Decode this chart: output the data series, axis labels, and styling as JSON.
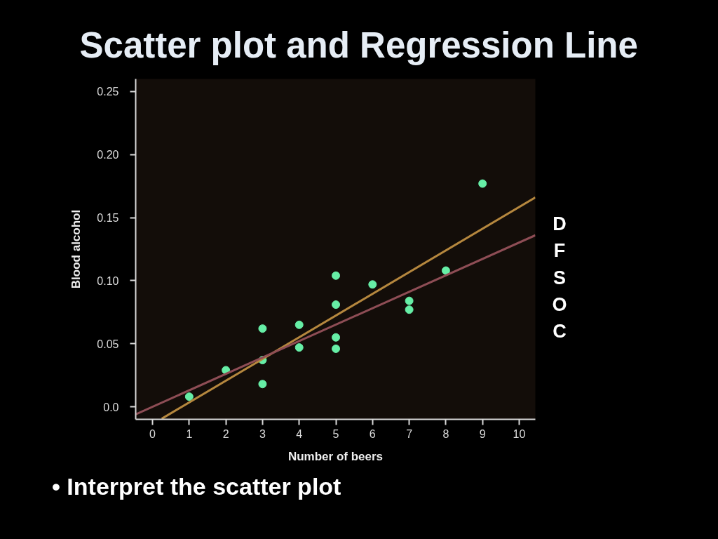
{
  "chart_data": {
    "type": "scatter",
    "title": "Scatter plot and Regression Line",
    "xlabel": "Number of beers",
    "ylabel": "Blood alcohol",
    "annotations": [
      "D\nF\nS\nO\nC",
      "• Interpret the scatter plot"
    ],
    "xlim": [
      -0.46,
      10.44
    ],
    "ylim": [
      -0.01,
      0.26
    ],
    "xticks": [
      0,
      1,
      2,
      3,
      4,
      5,
      6,
      7,
      8,
      9,
      10
    ],
    "yticks": [
      {
        "value": 0,
        "label": "0.0"
      },
      0.05,
      {
        "value": 0.1,
        "label": "0.10"
      },
      0.15,
      {
        "value": 0.2,
        "label": "0.20"
      },
      0.25
    ],
    "grid": false,
    "line_style": "solid",
    "series": [
      {
        "marker": "circle",
        "color": "#66eea6",
        "x": [
          1,
          2,
          3,
          3,
          3,
          4,
          4,
          5,
          5,
          5,
          5,
          6,
          7,
          7,
          8,
          9
        ],
        "values": [
          0.008,
          0.029,
          0.062,
          0.037,
          0.018,
          0.065,
          0.047,
          0.104,
          0.081,
          0.055,
          0.046,
          0.097,
          0.084,
          0.077,
          0.108,
          0.177
        ]
      },
      {
        "type": "line",
        "marker": "none",
        "color": "#b5873e",
        "x": [
          0.25,
          10.44
        ],
        "values": [
          -0.0095,
          0.166
        ]
      },
      {
        "type": "line",
        "marker": "none",
        "color": "#8e4d55",
        "x": [
          -0.46,
          10.44
        ],
        "values": [
          -0.006,
          0.136
        ]
      }
    ]
  }
}
